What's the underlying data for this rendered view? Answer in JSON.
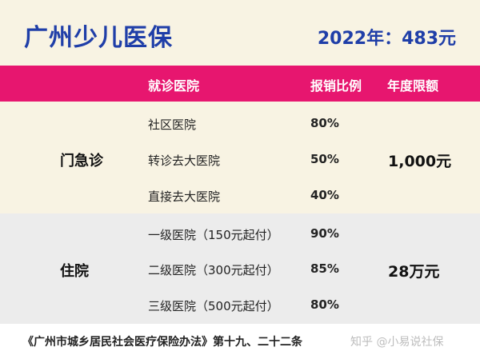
{
  "header": {
    "title": "广州少儿医保",
    "price": "2022年：483元"
  },
  "columns": {
    "hospital": "就诊医院",
    "rate": "报销比例",
    "limit": "年度限额"
  },
  "outpatient": {
    "category": "门急诊",
    "rows": [
      {
        "hospital": "社区医院",
        "rate": "80%"
      },
      {
        "hospital": "转诊去大医院",
        "rate": "50%"
      },
      {
        "hospital": "直接去大医院",
        "rate": "40%"
      }
    ],
    "limit": "1,000元"
  },
  "inpatient": {
    "category": "住院",
    "rows": [
      {
        "hospital": "一级医院（150元起付）",
        "rate": "90%"
      },
      {
        "hospital": "二级医院（300元起付）",
        "rate": "85%"
      },
      {
        "hospital": "三级医院（500元起付）",
        "rate": "80%"
      }
    ],
    "limit": "28万元"
  },
  "footer": {
    "citation": "《广州市城乡居民社会医疗保险办法》第十九、二十二条",
    "watermark": "知乎 @小易说社保"
  }
}
